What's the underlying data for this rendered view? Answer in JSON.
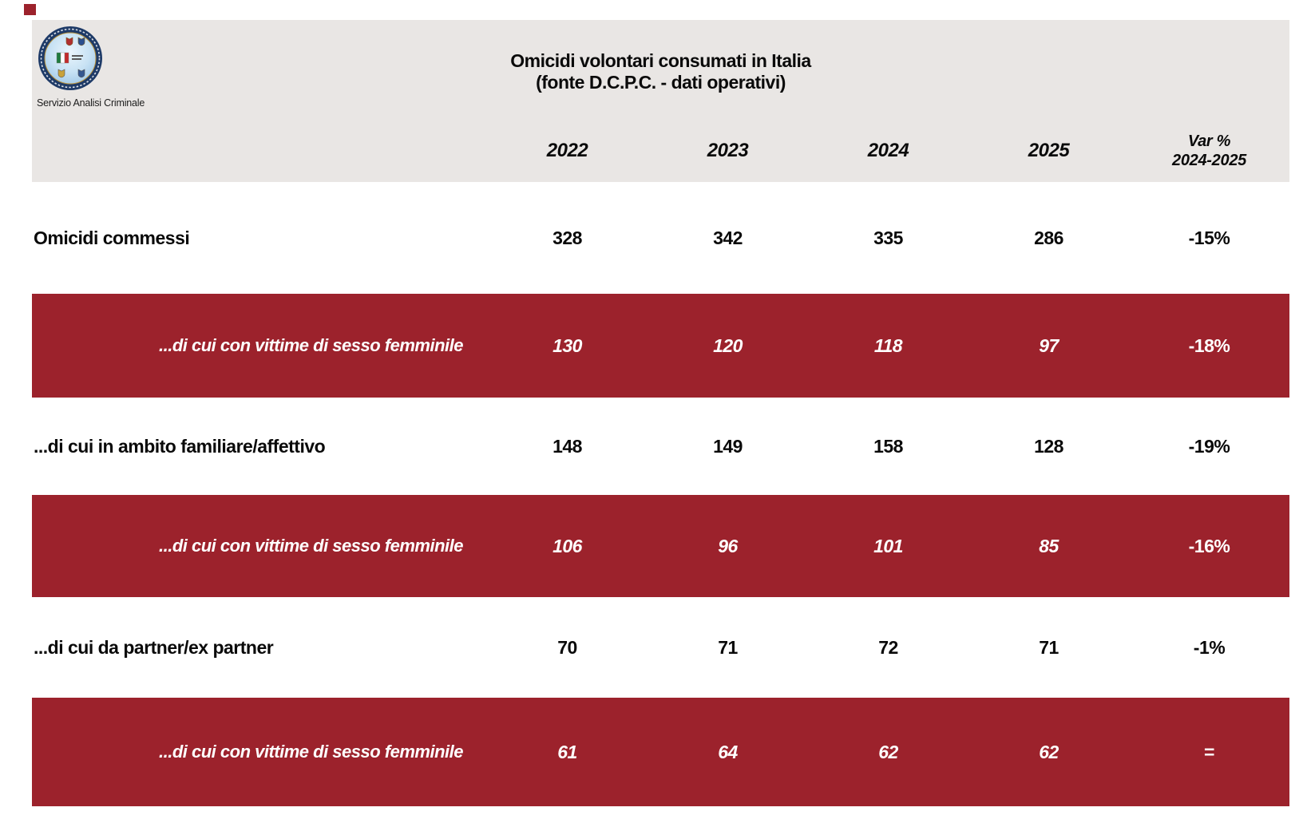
{
  "page": {
    "title_line1": "Omicidi volontari consumati in Italia",
    "title_line2": "(fonte D.C.P.C. - dati operativi)",
    "logo_caption": "Servizio Analisi Criminale"
  },
  "colors": {
    "accent_red": "#9C222C",
    "header_gray": "#E9E6E4",
    "row_text_white": "#FFFFFF",
    "text_black": "#0A0A0A"
  },
  "table": {
    "columns": [
      "2022",
      "2023",
      "2024",
      "2025"
    ],
    "var_header_line1": "Var %",
    "var_header_line2": "2024-2025",
    "rows": [
      {
        "style": "white",
        "label": "Omicidi commessi",
        "values": [
          "328",
          "342",
          "335",
          "286",
          "-15%"
        ]
      },
      {
        "style": "red",
        "label": "...di cui con vittime di sesso femminile",
        "values": [
          "130",
          "120",
          "118",
          "97",
          "-18%"
        ]
      },
      {
        "style": "white",
        "label": "...di cui in ambito familiare/affettivo",
        "values": [
          "148",
          "149",
          "158",
          "128",
          "-19%"
        ]
      },
      {
        "style": "red",
        "label": "...di cui con vittime di sesso femminile",
        "values": [
          "106",
          "96",
          "101",
          "85",
          "-16%"
        ]
      },
      {
        "style": "white",
        "label": "...di cui da partner/ex partner",
        "values": [
          "70",
          "71",
          "72",
          "71",
          "-1%"
        ]
      },
      {
        "style": "red",
        "label": "...di cui con vittime di sesso femminile",
        "values": [
          "61",
          "64",
          "62",
          "62",
          "="
        ]
      }
    ]
  }
}
